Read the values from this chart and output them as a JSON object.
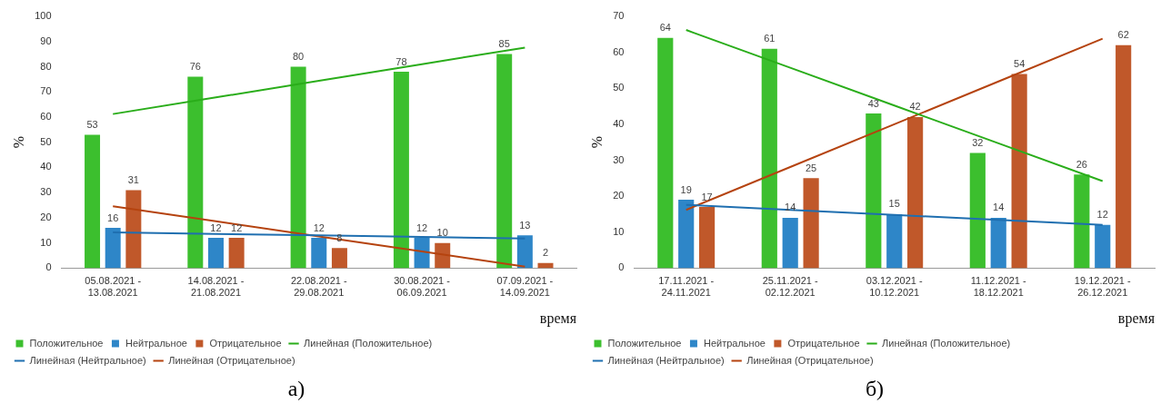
{
  "chart_data": [
    {
      "type": "bar",
      "categories": [
        "05.08.2021 - 13.08.2021",
        "14.08.2021 - 21.08.2021",
        "22.08.2021 - 29.08.2021",
        "30.08.2021 - 06.09.2021",
        "07.09.2021 - 14.09.2021"
      ],
      "ylabel": "%",
      "xlabel": "время",
      "ylim": [
        0,
        100
      ],
      "yticks": [
        0,
        10,
        20,
        30,
        40,
        50,
        60,
        70,
        80,
        90,
        100
      ],
      "grid": false,
      "legend": "bottom",
      "annotations": [
        "а)"
      ],
      "series": [
        {
          "name": "Положительное",
          "color": "#3cbf2e",
          "values": [
            53,
            76,
            80,
            78,
            85
          ],
          "value_labels": [
            "53",
            "76",
            "80",
            "78",
            "85"
          ]
        },
        {
          "name": "Нейтральное",
          "color": "#2e86c8",
          "values": [
            16,
            12,
            12,
            12,
            13
          ],
          "value_labels": [
            "16",
            "12",
            "12",
            "12",
            "13"
          ]
        },
        {
          "name": "Отрицательное",
          "color": "#c0582a",
          "values": [
            31,
            12,
            8,
            10,
            2
          ],
          "value_labels": [
            "31",
            "12",
            "8",
            "10",
            "2"
          ]
        },
        {
          "name": "Линейная (Положительное)",
          "type": "line",
          "marker": "none",
          "color": "#2aad1a",
          "values": [
            61.2,
            67.8,
            74.4,
            81,
            87.6
          ]
        },
        {
          "name": "Линейная (Нейтральное)",
          "type": "line",
          "marker": "none",
          "color": "#1f6fb0",
          "values": [
            14.2,
            13.6,
            13,
            12.4,
            11.8
          ]
        },
        {
          "name": "Линейная (Отрицательное)",
          "type": "line",
          "marker": "none",
          "color": "#b5430f",
          "values": [
            24.6,
            18.6,
            12.6,
            6.6,
            0.6
          ]
        }
      ]
    },
    {
      "type": "bar",
      "categories": [
        "17.11.2021 - 24.11.2021",
        "25.11.2021 - 02.12.2021",
        "03.12.2021 - 10.12.2021",
        "11.12.2021 - 18.12.2021",
        "19.12.2021 - 26.12.2021"
      ],
      "ylabel": "%",
      "xlabel": "время",
      "ylim": [
        0,
        70
      ],
      "yticks": [
        0,
        10,
        20,
        30,
        40,
        50,
        60,
        70
      ],
      "grid": false,
      "legend": "bottom",
      "annotations": [
        "б)"
      ],
      "series": [
        {
          "name": "Положительное",
          "color": "#3cbf2e",
          "values": [
            64,
            61,
            43,
            32,
            26
          ],
          "value_labels": [
            "64",
            "61",
            "43",
            "32",
            "26"
          ]
        },
        {
          "name": "Нейтральное",
          "color": "#2e86c8",
          "values": [
            19,
            14,
            15,
            14,
            12
          ],
          "value_labels": [
            "19",
            "14",
            "15",
            "14",
            "12"
          ]
        },
        {
          "name": "Отрицательное",
          "color": "#c0582a",
          "values": [
            17,
            25,
            42,
            54,
            62
          ],
          "value_labels": [
            "17",
            "25",
            "42",
            "54",
            "62"
          ]
        },
        {
          "name": "Линейная (Положительное)",
          "type": "line",
          "marker": "none",
          "color": "#2aad1a",
          "values": [
            66.2,
            55.7,
            45.2,
            34.7,
            24.2
          ]
        },
        {
          "name": "Линейная (Нейтральное)",
          "type": "line",
          "marker": "none",
          "color": "#1f6fb0",
          "values": [
            17.6,
            16.2,
            14.8,
            13.4,
            12
          ]
        },
        {
          "name": "Линейная (Отрицательное)",
          "type": "line",
          "marker": "none",
          "color": "#b5430f",
          "values": [
            16.2,
            28.1,
            40,
            51.9,
            63.8
          ]
        }
      ]
    }
  ]
}
